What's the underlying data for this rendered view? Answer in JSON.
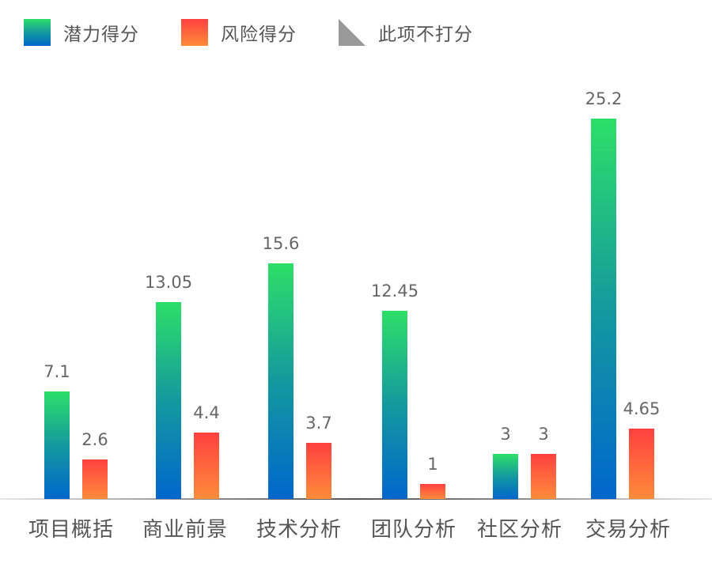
{
  "legend": [
    {
      "label": "潜力得分",
      "key": "potential"
    },
    {
      "label": "风险得分",
      "key": "risk"
    },
    {
      "label": "此项不打分",
      "key": "not_scored"
    }
  ],
  "colors": {
    "potential_top": "#2ddf68",
    "potential_mid": "#14999e",
    "potential_bottom": "#0066cc",
    "risk_top": "#ff4040",
    "risk_bottom": "#ff8c3a",
    "not_scored": "#999999",
    "text": "#666666"
  },
  "chart_data": {
    "type": "bar",
    "title": "",
    "xlabel": "",
    "ylabel": "",
    "categories": [
      "项目概括",
      "商业前景",
      "技术分析",
      "团队分析",
      "社区分析",
      "交易分析"
    ],
    "series": [
      {
        "name": "潜力得分",
        "values": [
          7.1,
          13.05,
          15.6,
          12.45,
          3,
          25.2
        ]
      },
      {
        "name": "风险得分",
        "values": [
          2.6,
          4.4,
          3.7,
          1,
          3,
          4.65
        ]
      }
    ],
    "value_labels": {
      "潜力得分": [
        "7.1",
        "13.05",
        "15.6",
        "12.45",
        "3",
        "25.2"
      ],
      "风险得分": [
        "2.6",
        "4.4",
        "3.7",
        "1",
        "3",
        "4.65"
      ]
    },
    "legend": [
      "潜力得分",
      "风险得分",
      "此项不打分"
    ],
    "legend_position": "top-left",
    "grid": false,
    "ylim": [
      0,
      26
    ],
    "y_axis_visible": false
  }
}
